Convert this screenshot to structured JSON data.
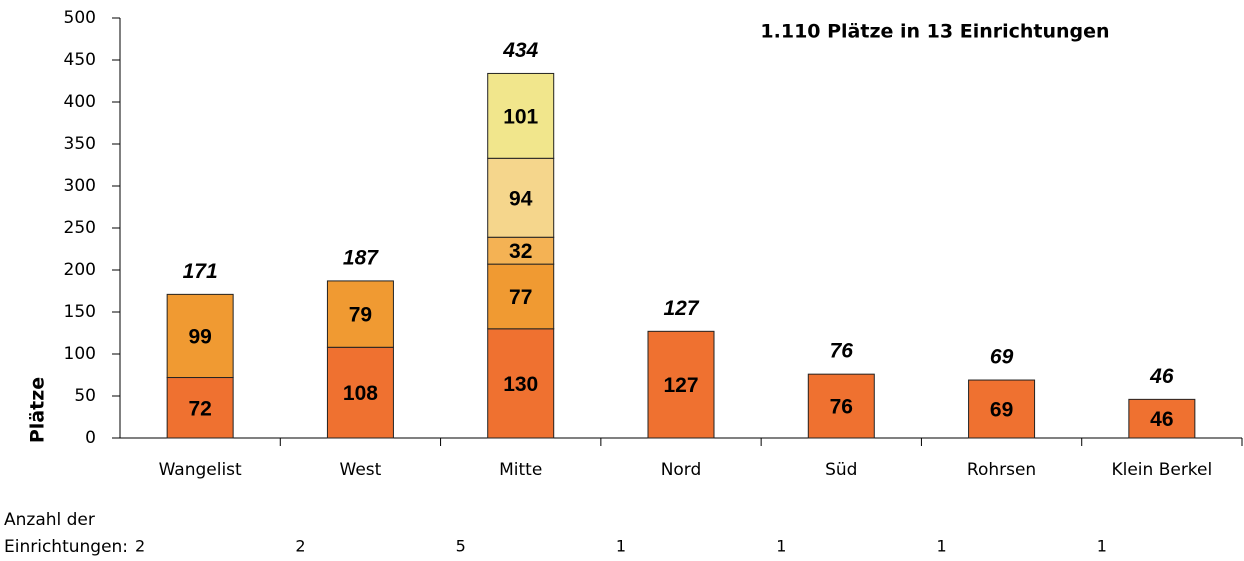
{
  "chart_data": {
    "type": "stacked_bar",
    "title": "1.110 Plätze in 13 Einrichtungen",
    "y_label": "Plätze",
    "categories": [
      "Wangelist",
      "West",
      "Mitte",
      "Nord",
      "Süd",
      "Rohrsen",
      "Klein Berkel"
    ],
    "series": [
      {
        "color": "#ef7130",
        "values": [
          72,
          108,
          130,
          127,
          76,
          69,
          46
        ]
      },
      {
        "color": "#f09a32",
        "values": [
          99,
          79,
          77,
          null,
          null,
          null,
          null
        ]
      },
      {
        "color": "#f4b254",
        "values": [
          null,
          null,
          32,
          null,
          null,
          null,
          null
        ]
      },
      {
        "color": "#f5d68c",
        "values": [
          null,
          null,
          94,
          null,
          null,
          null,
          null
        ]
      },
      {
        "color": "#f1e68c",
        "values": [
          null,
          null,
          101,
          null,
          null,
          null,
          null
        ]
      }
    ],
    "totals": [
      171,
      187,
      434,
      127,
      76,
      69,
      46
    ],
    "ylim": [
      0,
      500
    ],
    "yticks": [
      0,
      50,
      100,
      150,
      200,
      250,
      300,
      350,
      400,
      450,
      500
    ],
    "counts_label": [
      "Anzahl der",
      "Einrichtungen:"
    ],
    "counts": [
      2,
      2,
      5,
      1,
      1,
      1,
      1
    ]
  }
}
